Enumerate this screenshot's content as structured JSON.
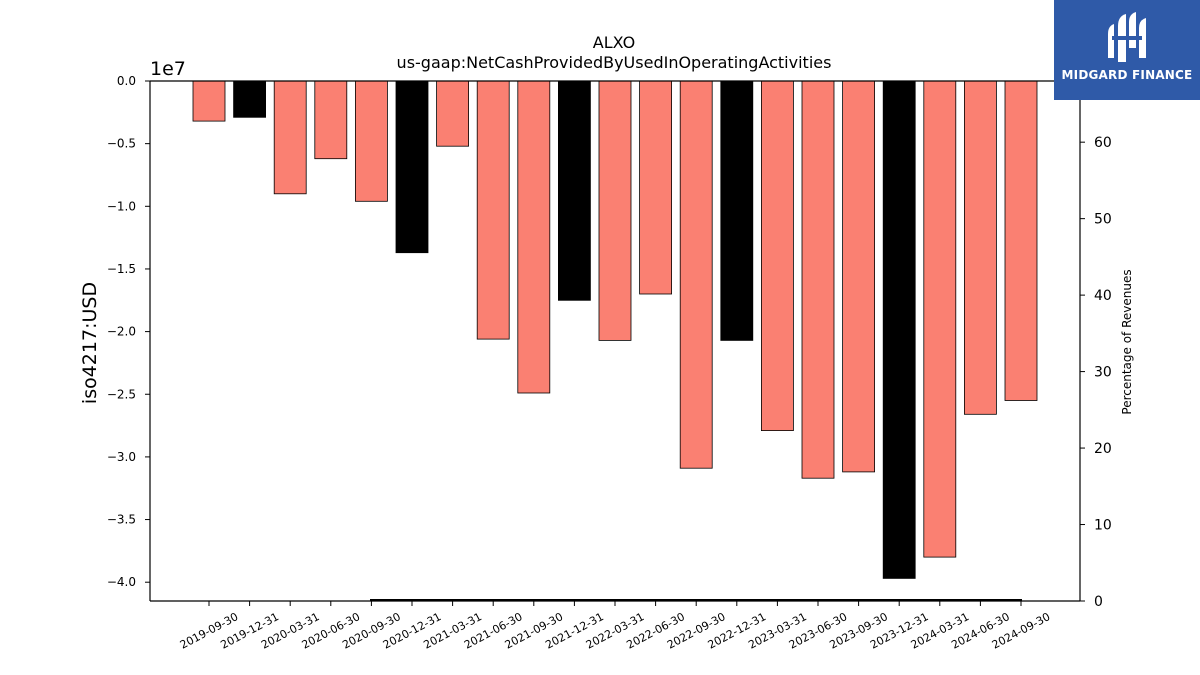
{
  "chart_data": {
    "type": "bar",
    "title": "ALXO",
    "subtitle": "us-gaap:NetCashProvidedByUsedInOperatingActivities",
    "ylabel": "iso4217:USD",
    "y_offset_label": "1e7",
    "y2label": "Percentage of Revenues",
    "ylim": [
      -4.15,
      0
    ],
    "y_unit_multiplier": 10000000,
    "y_ticks": [
      0.0,
      -0.5,
      -1.0,
      -1.5,
      -2.0,
      -2.5,
      -3.0,
      -3.5,
      -4.0
    ],
    "y_tick_labels": [
      "0.0",
      "−0.5",
      "−1.0",
      "−1.5",
      "−2.0",
      "−2.5",
      "−3.0",
      "−3.5",
      "−4.0"
    ],
    "y2lim": [
      0,
      68
    ],
    "y2_ticks": [
      0,
      10,
      20,
      30,
      40,
      50,
      60
    ],
    "y2_tick_labels": [
      "0",
      "10",
      "20",
      "30",
      "40",
      "50",
      "60"
    ],
    "categories": [
      "2019-09-30",
      "2019-12-31",
      "2020-03-31",
      "2020-06-30",
      "2020-09-30",
      "2020-12-31",
      "2021-03-31",
      "2021-06-30",
      "2021-09-30",
      "2021-12-31",
      "2022-03-31",
      "2022-06-30",
      "2022-09-30",
      "2022-12-31",
      "2023-03-31",
      "2023-06-30",
      "2023-09-30",
      "2023-12-31",
      "2024-03-31",
      "2024-06-30",
      "2024-09-30"
    ],
    "values": [
      -0.32,
      -0.29,
      -0.9,
      -0.62,
      -0.96,
      -1.37,
      -0.52,
      -2.06,
      -2.49,
      -1.75,
      -2.07,
      -1.7,
      -3.09,
      -2.07,
      -2.79,
      -3.17,
      -3.12,
      -3.97,
      -3.8,
      -2.66,
      -2.55
    ],
    "bar_colors": [
      "#fa8072",
      "#000000",
      "#fa8072",
      "#fa8072",
      "#fa8072",
      "#000000",
      "#fa8072",
      "#fa8072",
      "#fa8072",
      "#000000",
      "#fa8072",
      "#fa8072",
      "#fa8072",
      "#000000",
      "#fa8072",
      "#fa8072",
      "#fa8072",
      "#000000",
      "#fa8072",
      "#fa8072",
      "#fa8072"
    ],
    "colors": {
      "quarterly": "#fa8072",
      "annual": "#000000",
      "edge": "#000000"
    },
    "grid": false,
    "legend": "none"
  },
  "logo": {
    "text": "MIDGARD FINANCE",
    "background": "#2f5aa8"
  }
}
